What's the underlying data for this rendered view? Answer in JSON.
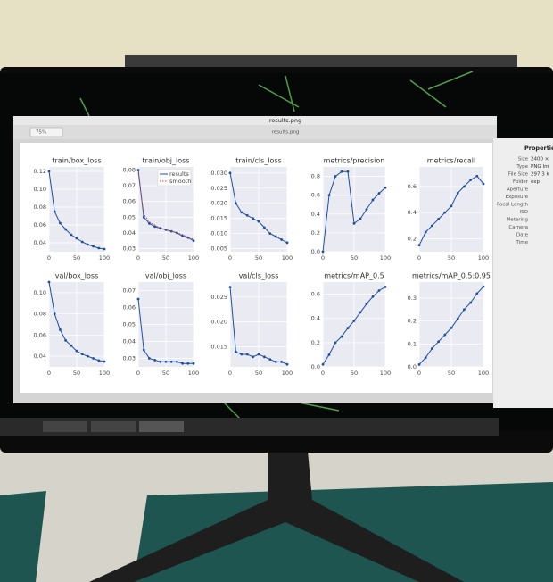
{
  "window": {
    "title": "results.png",
    "tab": "results.png",
    "zoom": "75%"
  },
  "properties": {
    "title": "Properties",
    "rows": [
      [
        "Size",
        "2400 ×"
      ],
      [
        "Type",
        "PNG Im"
      ],
      [
        "File Size",
        "297.3 k"
      ],
      [
        "Folder",
        "exp"
      ],
      [
        "Aperture",
        ""
      ],
      [
        "Exposure",
        ""
      ],
      [
        "Focal Length",
        ""
      ],
      [
        "ISO",
        ""
      ],
      [
        "Metering",
        ""
      ],
      [
        "Camera",
        ""
      ],
      [
        "Date",
        ""
      ],
      [
        "Time",
        ""
      ]
    ]
  },
  "chart_data": [
    {
      "type": "line",
      "title": "train/box_loss",
      "x": [
        0,
        10,
        20,
        30,
        40,
        50,
        60,
        70,
        80,
        90,
        100
      ],
      "series": [
        {
          "color": "#1f4fa0",
          "values": [
            0.12,
            0.075,
            0.062,
            0.055,
            0.049,
            0.045,
            0.041,
            0.038,
            0.036,
            0.034,
            0.033
          ]
        }
      ],
      "xlim": [
        0,
        100
      ],
      "xticks": [
        0,
        50,
        100
      ],
      "ylim": [
        0.03,
        0.125
      ],
      "yticks": [
        0.04,
        0.06,
        0.08,
        {
          "value": 0.1,
          "label": "0.10"
        },
        0.12
      ],
      "grid": true
    },
    {
      "type": "line",
      "title": "train/obj_loss",
      "x": [
        0,
        10,
        20,
        30,
        40,
        50,
        60,
        70,
        80,
        90,
        100
      ],
      "series": [
        {
          "name": "results",
          "color": "#1f4fa0",
          "values": [
            0.08,
            0.05,
            0.046,
            0.044,
            0.043,
            0.042,
            0.041,
            0.04,
            0.038,
            0.037,
            0.035
          ]
        },
        {
          "name": "smooth",
          "color": "#d04040",
          "values": [
            0.078,
            0.052,
            0.047,
            0.045,
            0.043,
            0.042,
            0.041,
            0.04,
            0.039,
            0.037,
            0.036
          ]
        }
      ],
      "xlim": [
        0,
        100
      ],
      "xticks": [
        0,
        50,
        100
      ],
      "ylim": [
        0.028,
        0.082
      ],
      "yticks": [
        0.03,
        0.04,
        0.05,
        0.06,
        0.07,
        0.08
      ],
      "grid": true,
      "legend": "upper right"
    },
    {
      "type": "line",
      "title": "train/cls_loss",
      "x": [
        0,
        10,
        20,
        30,
        40,
        50,
        60,
        70,
        80,
        90,
        100
      ],
      "series": [
        {
          "color": "#1f4fa0",
          "values": [
            0.03,
            0.02,
            0.017,
            0.016,
            0.015,
            0.014,
            0.012,
            0.01,
            0.009,
            0.008,
            0.007
          ]
        }
      ],
      "xlim": [
        0,
        100
      ],
      "xticks": [
        0,
        50,
        100
      ],
      "ylim": [
        0.004,
        0.032
      ],
      "yticks": [
        0.005,
        {
          "value": 0.01,
          "label": "0.010"
        },
        0.015,
        {
          "value": 0.02,
          "label": "0.020"
        },
        0.025,
        {
          "value": 0.03,
          "label": "0.030"
        }
      ],
      "grid": true
    },
    {
      "type": "line",
      "title": "metrics/precision",
      "x": [
        0,
        10,
        20,
        30,
        40,
        50,
        60,
        70,
        80,
        90,
        100
      ],
      "series": [
        {
          "color": "#1f4fa0",
          "values": [
            0,
            0.6,
            0.8,
            0.85,
            0.85,
            0.3,
            0.35,
            0.45,
            0.55,
            0.62,
            0.68
          ]
        }
      ],
      "xlim": [
        0,
        100
      ],
      "xticks": [
        0,
        50,
        100
      ],
      "ylim": [
        0,
        0.9
      ],
      "yticks": [
        {
          "value": 0,
          "label": "0.0"
        },
        0.2,
        0.4,
        0.6,
        0.8
      ],
      "grid": true
    },
    {
      "type": "line",
      "title": "metrics/recall",
      "x": [
        0,
        10,
        20,
        30,
        40,
        50,
        60,
        70,
        80,
        90,
        100
      ],
      "series": [
        {
          "color": "#1f4fa0",
          "values": [
            0.15,
            0.25,
            0.3,
            0.35,
            0.4,
            0.45,
            0.55,
            0.6,
            0.65,
            0.68,
            0.62
          ]
        }
      ],
      "xlim": [
        0,
        100
      ],
      "xticks": [
        0,
        50,
        100
      ],
      "ylim": [
        0.1,
        0.75
      ],
      "yticks": [
        0.2,
        0.4,
        0.6
      ],
      "grid": true
    },
    {
      "type": "line",
      "title": "val/box_loss",
      "x": [
        0,
        10,
        20,
        30,
        40,
        50,
        60,
        70,
        80,
        90,
        100
      ],
      "series": [
        {
          "color": "#1f4fa0",
          "values": [
            0.11,
            0.08,
            0.065,
            0.055,
            0.05,
            0.045,
            0.042,
            0.04,
            0.038,
            0.036,
            0.035
          ]
        }
      ],
      "xlim": [
        0,
        100
      ],
      "xticks": [
        0,
        50,
        100
      ],
      "ylim": [
        0.03,
        0.11
      ],
      "yticks": [
        0.04,
        0.06,
        0.08,
        {
          "value": 0.1,
          "label": "0.10"
        }
      ],
      "grid": true
    },
    {
      "type": "line",
      "title": "val/obj_loss",
      "x": [
        0,
        10,
        20,
        30,
        40,
        50,
        60,
        70,
        80,
        90,
        100
      ],
      "series": [
        {
          "color": "#1f4fa0",
          "values": [
            0.065,
            0.035,
            0.03,
            0.029,
            0.028,
            0.028,
            0.028,
            0.028,
            0.027,
            0.027,
            0.027
          ]
        }
      ],
      "xlim": [
        0,
        100
      ],
      "xticks": [
        0,
        50,
        100
      ],
      "ylim": [
        0.025,
        0.075
      ],
      "yticks": [
        0.03,
        0.04,
        0.05,
        0.06,
        0.07
      ],
      "grid": true
    },
    {
      "type": "line",
      "title": "val/cls_loss",
      "x": [
        0,
        10,
        20,
        30,
        40,
        50,
        60,
        70,
        80,
        90,
        100
      ],
      "series": [
        {
          "color": "#1f4fa0",
          "values": [
            0.027,
            0.014,
            0.0135,
            0.0135,
            0.013,
            0.0135,
            0.013,
            0.0125,
            0.012,
            0.012,
            0.0115
          ]
        }
      ],
      "xlim": [
        0,
        100
      ],
      "xticks": [
        0,
        50,
        100
      ],
      "ylim": [
        0.011,
        0.028
      ],
      "yticks": [
        0.015,
        {
          "value": 0.02,
          "label": "0.020"
        },
        0.025
      ],
      "grid": true
    },
    {
      "type": "line",
      "title": "metrics/mAP_0.5",
      "x": [
        0,
        10,
        20,
        30,
        40,
        50,
        60,
        70,
        80,
        90,
        100
      ],
      "series": [
        {
          "color": "#1f4fa0",
          "values": [
            0.02,
            0.1,
            0.2,
            0.25,
            0.32,
            0.38,
            0.45,
            0.52,
            0.58,
            0.63,
            0.66
          ]
        }
      ],
      "xlim": [
        0,
        100
      ],
      "xticks": [
        0,
        50,
        100
      ],
      "ylim": [
        0,
        0.7
      ],
      "yticks": [
        {
          "value": 0,
          "label": "0.0"
        },
        0.2,
        0.4,
        0.6
      ],
      "grid": true
    },
    {
      "type": "line",
      "title": "metrics/mAP_0.5:0.95",
      "x": [
        0,
        10,
        20,
        30,
        40,
        50,
        60,
        70,
        80,
        90,
        100
      ],
      "series": [
        {
          "color": "#1f4fa0",
          "values": [
            0.01,
            0.04,
            0.08,
            0.11,
            0.14,
            0.17,
            0.21,
            0.25,
            0.28,
            0.32,
            0.35
          ]
        }
      ],
      "xlim": [
        0,
        100
      ],
      "xticks": [
        0,
        50,
        100
      ],
      "ylim": [
        0,
        0.37
      ],
      "yticks": [
        {
          "value": 0,
          "label": "0.0"
        },
        0.1,
        0.2,
        0.3
      ],
      "grid": true
    }
  ]
}
